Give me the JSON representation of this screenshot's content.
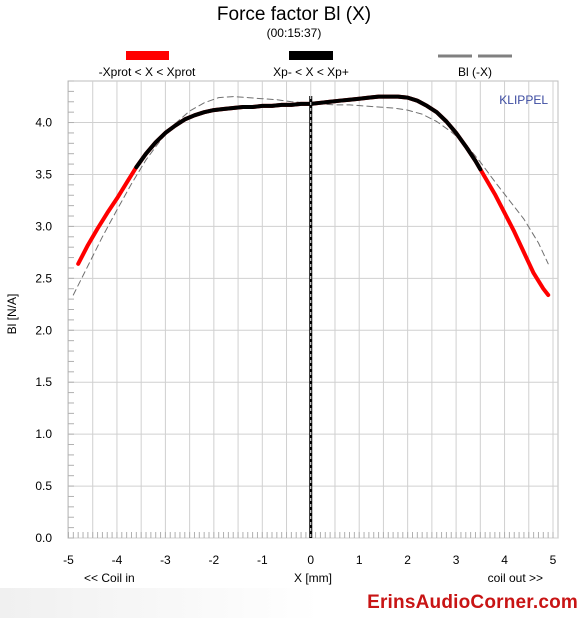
{
  "chart_data": {
    "type": "line",
    "title": "Force factor Bl (X)",
    "subtitle": "(00:15:37)",
    "xlabel": "X [mm]",
    "ylabel": "Bl [N/A]",
    "xlim": [
      -5,
      5
    ],
    "ylim": [
      0,
      4.4
    ],
    "x_ticks": [
      "-5",
      "-4",
      "-3",
      "-2",
      "-1",
      "0",
      "1",
      "2",
      "3",
      "4",
      "5"
    ],
    "y_ticks": [
      "0.0",
      "0.5",
      "1.0",
      "1.5",
      "2.0",
      "2.5",
      "3.0",
      "3.5",
      "4.0"
    ],
    "grid": true,
    "x_left_note": "<< Coil in",
    "x_right_note": "coil out >>",
    "brand": "KLIPPEL",
    "legend": [
      {
        "label": "-Xprot < X < Xprot",
        "color": "#ff0000",
        "style": "solid"
      },
      {
        "label": "Xp- < X < Xp+",
        "color": "#000000",
        "style": "solid"
      },
      {
        "label": "Bl (-X)",
        "color": "#808080",
        "style": "dashed"
      }
    ],
    "series": [
      {
        "color": "#ff0000",
        "style": "thick",
        "x": [
          -4.8,
          -4.6,
          -4.4,
          -4.2,
          -4.0,
          -3.8,
          -3.6,
          -3.4,
          -3.2,
          -3.0,
          -2.8,
          -2.6,
          -2.4,
          -2.2,
          -2.0,
          -1.8,
          -1.6,
          -1.4,
          -1.2,
          -1.0,
          -0.8,
          -0.6,
          -0.4,
          -0.2,
          0.0,
          0.2,
          0.4,
          0.6,
          0.8,
          1.0,
          1.2,
          1.4,
          1.6,
          1.8,
          2.0,
          2.2,
          2.4,
          2.6,
          2.8,
          3.0,
          3.2,
          3.4,
          3.6,
          3.8,
          4.0,
          4.2,
          4.4,
          4.6,
          4.8,
          4.9
        ],
        "y": [
          2.64,
          2.82,
          2.98,
          3.13,
          3.27,
          3.42,
          3.57,
          3.7,
          3.81,
          3.9,
          3.97,
          4.03,
          4.07,
          4.1,
          4.12,
          4.13,
          4.14,
          4.15,
          4.15,
          4.16,
          4.16,
          4.17,
          4.17,
          4.18,
          4.18,
          4.19,
          4.2,
          4.21,
          4.22,
          4.23,
          4.24,
          4.25,
          4.25,
          4.25,
          4.24,
          4.21,
          4.16,
          4.1,
          4.01,
          3.9,
          3.77,
          3.63,
          3.47,
          3.31,
          3.13,
          2.95,
          2.75,
          2.55,
          2.4,
          2.34
        ]
      },
      {
        "color": "#000000",
        "style": "thick",
        "x": [
          -3.6,
          -3.4,
          -3.2,
          -3.0,
          -2.8,
          -2.6,
          -2.4,
          -2.2,
          -2.0,
          -1.8,
          -1.6,
          -1.4,
          -1.2,
          -1.0,
          -0.8,
          -0.6,
          -0.4,
          -0.2,
          0.0,
          0.2,
          0.4,
          0.6,
          0.8,
          1.0,
          1.2,
          1.4,
          1.6,
          1.8,
          2.0,
          2.2,
          2.4,
          2.6,
          2.8,
          3.0,
          3.2,
          3.4,
          3.5
        ],
        "y": [
          3.57,
          3.7,
          3.81,
          3.9,
          3.97,
          4.03,
          4.07,
          4.1,
          4.12,
          4.13,
          4.14,
          4.15,
          4.15,
          4.16,
          4.16,
          4.17,
          4.17,
          4.18,
          4.18,
          4.19,
          4.2,
          4.21,
          4.22,
          4.23,
          4.24,
          4.25,
          4.25,
          4.25,
          4.24,
          4.21,
          4.16,
          4.1,
          4.01,
          3.9,
          3.77,
          3.63,
          3.55
        ]
      },
      {
        "color": "#707070",
        "style": "dashed",
        "x": [
          -4.9,
          -4.6,
          -4.3,
          -4.0,
          -3.7,
          -3.4,
          -3.1,
          -2.8,
          -2.5,
          -2.2,
          -1.9,
          -1.6,
          -1.3,
          -1.0,
          -0.7,
          -0.4,
          -0.1,
          0.2,
          0.5,
          0.8,
          1.1,
          1.4,
          1.7,
          2.0,
          2.3,
          2.6,
          2.9,
          3.2,
          3.5,
          3.8,
          4.1,
          4.4,
          4.7,
          4.9
        ],
        "y": [
          2.34,
          2.62,
          2.9,
          3.16,
          3.41,
          3.64,
          3.83,
          3.99,
          4.11,
          4.19,
          4.24,
          4.25,
          4.24,
          4.23,
          4.22,
          4.2,
          4.19,
          4.18,
          4.17,
          4.17,
          4.16,
          4.15,
          4.14,
          4.12,
          4.08,
          4.01,
          3.91,
          3.79,
          3.62,
          3.43,
          3.25,
          3.07,
          2.84,
          2.64
        ]
      }
    ],
    "vertical_marker_x": 0
  },
  "watermark": "ErinsAudioCorner.com"
}
